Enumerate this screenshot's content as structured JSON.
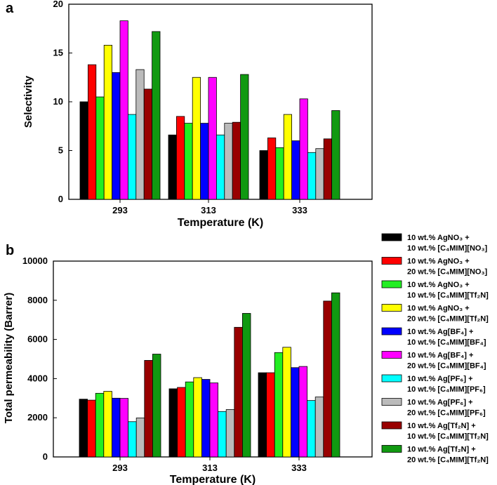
{
  "legend": [
    {
      "line1": "10 wt.% AgNO₃ +",
      "line2": "10 wt.% [C₄MIM][NO₃]",
      "color": "#000000"
    },
    {
      "line1": "10 wt.% AgNO₃ +",
      "line2": "20 wt.% [C₄MIM][NO₃]",
      "color": "#ff0000"
    },
    {
      "line1": "10 wt.% AgNO₃ +",
      "line2": "10 wt.% [C₄MIM][Tf₂N]",
      "color": "#22ee22"
    },
    {
      "line1": "10 wt.% AgNO₃ +",
      "line2": "20 wt.% [C₄MIM][Tf₂N]",
      "color": "#ffff00"
    },
    {
      "line1": "10 wt.% Ag[BF₄] +",
      "line2": "10 wt.% [C₄MIM][BF₄]",
      "color": "#0000ff"
    },
    {
      "line1": "10 wt.% Ag[BF₄] +",
      "line2": "20 wt.% [C₄MIM][BF₄]",
      "color": "#ff00ff"
    },
    {
      "line1": "10 wt.% Ag[PF₆] +",
      "line2": "10 wt.% [C₄MIM][PF₆]",
      "color": "#00ffff"
    },
    {
      "line1": "10 wt.% Ag[PF₆] +",
      "line2": "20 wt.% [C₄MIM][PF₆]",
      "color": "#bbbbbb"
    },
    {
      "line1": "10 wt.% Ag[Tf₂N] +",
      "line2": "10 wt.% [C₄MIM][Tf₂N]",
      "color": "#990000"
    },
    {
      "line1": "10 wt.% Ag[Tf₂N] +",
      "line2": "20 wt.% [C₄MIM][Tf₂N]",
      "color": "#119911"
    }
  ],
  "chart_data": [
    {
      "panel": "a",
      "type": "bar",
      "title": "",
      "xlabel": "Temperature (K)",
      "ylabel": "Selectivity",
      "categories": [
        "293",
        "313",
        "333"
      ],
      "ylim": [
        0,
        20
      ],
      "yticks": [
        "0",
        "5",
        "10",
        "15",
        "20"
      ],
      "series": [
        {
          "values": [
            10.0,
            6.6,
            5.0
          ]
        },
        {
          "values": [
            13.8,
            8.5,
            6.3
          ]
        },
        {
          "values": [
            10.5,
            7.8,
            5.3
          ]
        },
        {
          "values": [
            15.8,
            12.5,
            8.7
          ]
        },
        {
          "values": [
            13.0,
            7.8,
            6.0
          ]
        },
        {
          "values": [
            18.3,
            12.5,
            10.3
          ]
        },
        {
          "values": [
            8.7,
            6.6,
            4.8
          ]
        },
        {
          "values": [
            13.3,
            7.8,
            5.2
          ]
        },
        {
          "values": [
            11.3,
            7.9,
            6.2
          ]
        },
        {
          "values": [
            17.2,
            12.8,
            9.1
          ]
        }
      ]
    },
    {
      "panel": "b",
      "type": "bar",
      "title": "",
      "xlabel": "Temperature (K)",
      "ylabel": "Total permeability (Barrer)",
      "categories": [
        "293",
        "313",
        "333"
      ],
      "ylim": [
        0,
        10000
      ],
      "yticks": [
        "0",
        "2000",
        "4000",
        "6000",
        "8000",
        "10000"
      ],
      "series": [
        {
          "values": [
            2950,
            3480,
            4300
          ]
        },
        {
          "values": [
            2900,
            3550,
            4300
          ]
        },
        {
          "values": [
            3250,
            3830,
            5330
          ]
        },
        {
          "values": [
            3350,
            4050,
            5600
          ]
        },
        {
          "values": [
            3000,
            3960,
            4560
          ]
        },
        {
          "values": [
            2990,
            3780,
            4620
          ]
        },
        {
          "values": [
            1800,
            2320,
            2880
          ]
        },
        {
          "values": [
            1990,
            2420,
            3060
          ]
        },
        {
          "values": [
            4930,
            6620,
            7960
          ]
        },
        {
          "values": [
            5250,
            7330,
            8380
          ]
        }
      ]
    }
  ]
}
